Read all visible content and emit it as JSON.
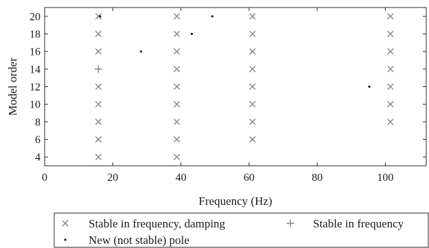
{
  "chart_data": {
    "type": "scatter",
    "title": "",
    "xlabel": "Frequency (Hz)",
    "ylabel": "Model order",
    "xlim": [
      0,
      112
    ],
    "ylim": [
      3,
      21
    ],
    "xticks": [
      0,
      20,
      40,
      60,
      80,
      100
    ],
    "yticks": [
      4,
      6,
      8,
      10,
      12,
      14,
      16,
      18,
      20
    ],
    "grid": false,
    "legend_position": "bottom",
    "series": [
      {
        "name": "Stable in frequency, damping",
        "marker": "x",
        "color": "#8c8c8c",
        "points": [
          [
            15.8,
            4
          ],
          [
            15.8,
            6
          ],
          [
            15.8,
            8
          ],
          [
            15.8,
            10
          ],
          [
            15.8,
            12
          ],
          [
            15.8,
            16
          ],
          [
            15.8,
            18
          ],
          [
            15.8,
            20
          ],
          [
            38.8,
            4
          ],
          [
            38.8,
            6
          ],
          [
            38.8,
            8
          ],
          [
            38.8,
            10
          ],
          [
            38.8,
            12
          ],
          [
            38.8,
            14
          ],
          [
            38.8,
            16
          ],
          [
            38.8,
            18
          ],
          [
            38.8,
            20
          ],
          [
            61.0,
            6
          ],
          [
            61.0,
            8
          ],
          [
            61.0,
            10
          ],
          [
            61.0,
            12
          ],
          [
            61.0,
            14
          ],
          [
            61.0,
            16
          ],
          [
            61.0,
            18
          ],
          [
            61.0,
            20
          ],
          [
            101.5,
            8
          ],
          [
            101.5,
            10
          ],
          [
            101.5,
            12
          ],
          [
            101.5,
            14
          ],
          [
            101.5,
            16
          ],
          [
            101.5,
            18
          ],
          [
            101.5,
            20
          ]
        ]
      },
      {
        "name": "Stable in frequency",
        "marker": "+",
        "color": "#8c8c8c",
        "points": [
          [
            15.8,
            14
          ]
        ]
      },
      {
        "name": "New (not stable) pole",
        "marker": "dot",
        "color": "#1a1a1a",
        "points": [
          [
            16.3,
            20
          ],
          [
            28.3,
            16
          ],
          [
            43.2,
            18
          ],
          [
            49.2,
            20
          ],
          [
            95.3,
            12
          ]
        ]
      }
    ]
  }
}
